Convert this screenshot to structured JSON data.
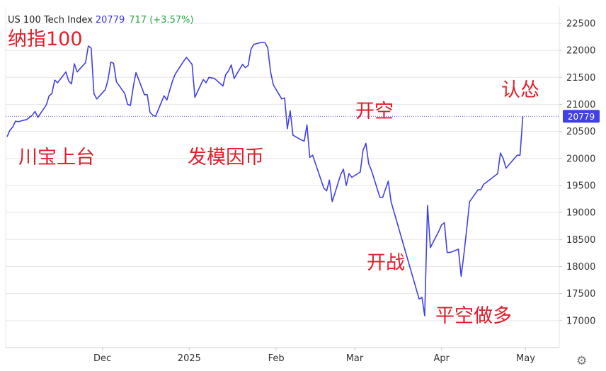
{
  "header": {
    "name": "US 100 Tech Index",
    "last": "20779",
    "change": "717 (+3.57%)"
  },
  "annotations": [
    "纳指100",
    "川宝上台",
    "发模因币",
    "开空",
    "开战",
    "平空做多",
    "认怂"
  ],
  "colors": {
    "line": "#4040e6",
    "badge": "#4040e6",
    "annotation": "#e01f2a",
    "grid": "#e6e6e6",
    "change": "#27a844"
  },
  "gear_icon": "⚙",
  "chart_data": {
    "type": "line",
    "title": "US 100 Tech Index",
    "xlabel": "",
    "ylabel": "",
    "ylim": [
      16500,
      22800
    ],
    "grid": true,
    "y_ticks": [
      17000,
      17500,
      18000,
      18500,
      19000,
      19500,
      20000,
      20500,
      21000,
      21500,
      22000,
      22500
    ],
    "x_tick_labels": [
      {
        "label": "Dec",
        "date": "2024-12-01"
      },
      {
        "label": "2025",
        "date": "2025-01-01"
      },
      {
        "label": "Feb",
        "date": "2025-02-01"
      },
      {
        "label": "Mar",
        "date": "2025-03-01"
      },
      {
        "label": "Apr",
        "date": "2025-04-01"
      },
      {
        "label": "May",
        "date": "2025-05-01"
      }
    ],
    "last_value": 20779,
    "last_value_label": "20779",
    "series": [
      {
        "values": [
          [
            "2024-10-28",
            20400
          ],
          [
            "2024-10-29",
            20520
          ],
          [
            "2024-10-30",
            20580
          ],
          [
            "2024-10-31",
            20690
          ],
          [
            "2024-11-01",
            20680
          ],
          [
            "2024-11-04",
            20720
          ],
          [
            "2024-11-05",
            20760
          ],
          [
            "2024-11-06",
            20800
          ],
          [
            "2024-11-07",
            20870
          ],
          [
            "2024-11-08",
            20760
          ],
          [
            "2024-11-11",
            20990
          ],
          [
            "2024-11-12",
            21160
          ],
          [
            "2024-11-13",
            21200
          ],
          [
            "2024-11-14",
            21450
          ],
          [
            "2024-11-15",
            21400
          ],
          [
            "2024-11-18",
            21600
          ],
          [
            "2024-11-19",
            21430
          ],
          [
            "2024-11-20",
            21380
          ],
          [
            "2024-11-21",
            21750
          ],
          [
            "2024-11-22",
            21600
          ],
          [
            "2024-11-25",
            21770
          ],
          [
            "2024-11-26",
            22080
          ],
          [
            "2024-11-27",
            22040
          ],
          [
            "2024-11-28",
            21200
          ],
          [
            "2024-11-29",
            21100
          ],
          [
            "2024-12-02",
            21270
          ],
          [
            "2024-12-03",
            21450
          ],
          [
            "2024-12-04",
            21780
          ],
          [
            "2024-12-05",
            21760
          ],
          [
            "2024-12-06",
            21420
          ],
          [
            "2024-12-09",
            21200
          ],
          [
            "2024-12-10",
            21000
          ],
          [
            "2024-12-11",
            20980
          ],
          [
            "2024-12-12",
            21320
          ],
          [
            "2024-12-13",
            21590
          ],
          [
            "2024-12-16",
            21180
          ],
          [
            "2024-12-17",
            21180
          ],
          [
            "2024-12-18",
            20850
          ],
          [
            "2024-12-19",
            20800
          ],
          [
            "2024-12-20",
            20780
          ],
          [
            "2024-12-23",
            21160
          ],
          [
            "2024-12-24",
            21080
          ],
          [
            "2024-12-26",
            21430
          ],
          [
            "2024-12-27",
            21560
          ],
          [
            "2024-12-30",
            21800
          ],
          [
            "2024-12-31",
            21870
          ],
          [
            "2025-01-02",
            21740
          ],
          [
            "2025-01-03",
            21130
          ],
          [
            "2025-01-06",
            21460
          ],
          [
            "2025-01-07",
            21400
          ],
          [
            "2025-01-08",
            21500
          ],
          [
            "2025-01-10",
            21480
          ],
          [
            "2025-01-13",
            21340
          ],
          [
            "2025-01-14",
            21550
          ],
          [
            "2025-01-15",
            21620
          ],
          [
            "2025-01-16",
            21730
          ],
          [
            "2025-01-17",
            21480
          ],
          [
            "2025-01-20",
            21740
          ],
          [
            "2025-01-21",
            21680
          ],
          [
            "2025-01-22",
            21720
          ],
          [
            "2025-01-23",
            22020
          ],
          [
            "2025-01-24",
            22110
          ],
          [
            "2025-01-27",
            22150
          ],
          [
            "2025-01-28",
            22140
          ],
          [
            "2025-01-29",
            22050
          ],
          [
            "2025-01-30",
            21600
          ],
          [
            "2025-01-31",
            21360
          ],
          [
            "2025-02-03",
            21100
          ],
          [
            "2025-02-04",
            21120
          ],
          [
            "2025-02-05",
            20550
          ],
          [
            "2025-02-06",
            20880
          ],
          [
            "2025-02-07",
            20430
          ],
          [
            "2025-02-10",
            20340
          ],
          [
            "2025-02-11",
            20320
          ],
          [
            "2025-02-12",
            20620
          ],
          [
            "2025-02-13",
            20020
          ],
          [
            "2025-02-14",
            20060
          ],
          [
            "2025-02-18",
            19450
          ],
          [
            "2025-02-19",
            19400
          ],
          [
            "2025-02-20",
            19600
          ],
          [
            "2025-02-21",
            19200
          ],
          [
            "2025-02-24",
            19700
          ],
          [
            "2025-02-25",
            19800
          ],
          [
            "2025-02-26",
            19500
          ],
          [
            "2025-02-27",
            19720
          ],
          [
            "2025-02-28",
            19650
          ],
          [
            "2025-03-03",
            19750
          ],
          [
            "2025-03-04",
            20150
          ],
          [
            "2025-03-05",
            20280
          ],
          [
            "2025-03-06",
            19900
          ],
          [
            "2025-03-07",
            19780
          ],
          [
            "2025-03-10",
            19280
          ],
          [
            "2025-03-11",
            19280
          ],
          [
            "2025-03-12",
            19430
          ],
          [
            "2025-03-13",
            19580
          ],
          [
            "2025-03-14",
            19200
          ],
          [
            "2025-03-24",
            17400
          ],
          [
            "2025-03-25",
            17430
          ],
          [
            "2025-03-26",
            17090
          ],
          [
            "2025-03-27",
            19130
          ],
          [
            "2025-03-28",
            18350
          ],
          [
            "2025-03-31",
            18650
          ],
          [
            "2025-04-01",
            18770
          ],
          [
            "2025-04-02",
            18810
          ],
          [
            "2025-04-03",
            18260
          ],
          [
            "2025-04-04",
            18260
          ],
          [
            "2025-04-07",
            18320
          ],
          [
            "2025-04-08",
            17820
          ],
          [
            "2025-04-09",
            18240
          ],
          [
            "2025-04-10",
            18700
          ],
          [
            "2025-04-11",
            19200
          ],
          [
            "2025-04-14",
            19420
          ],
          [
            "2025-04-15",
            19420
          ],
          [
            "2025-04-16",
            19520
          ],
          [
            "2025-04-17",
            19560
          ],
          [
            "2025-04-21",
            19720
          ],
          [
            "2025-04-22",
            20100
          ],
          [
            "2025-04-23",
            20000
          ],
          [
            "2025-04-24",
            19820
          ],
          [
            "2025-04-25",
            19880
          ],
          [
            "2025-04-28",
            20060
          ],
          [
            "2025-04-29",
            20060
          ],
          [
            "2025-04-30",
            20779
          ]
        ]
      }
    ]
  }
}
